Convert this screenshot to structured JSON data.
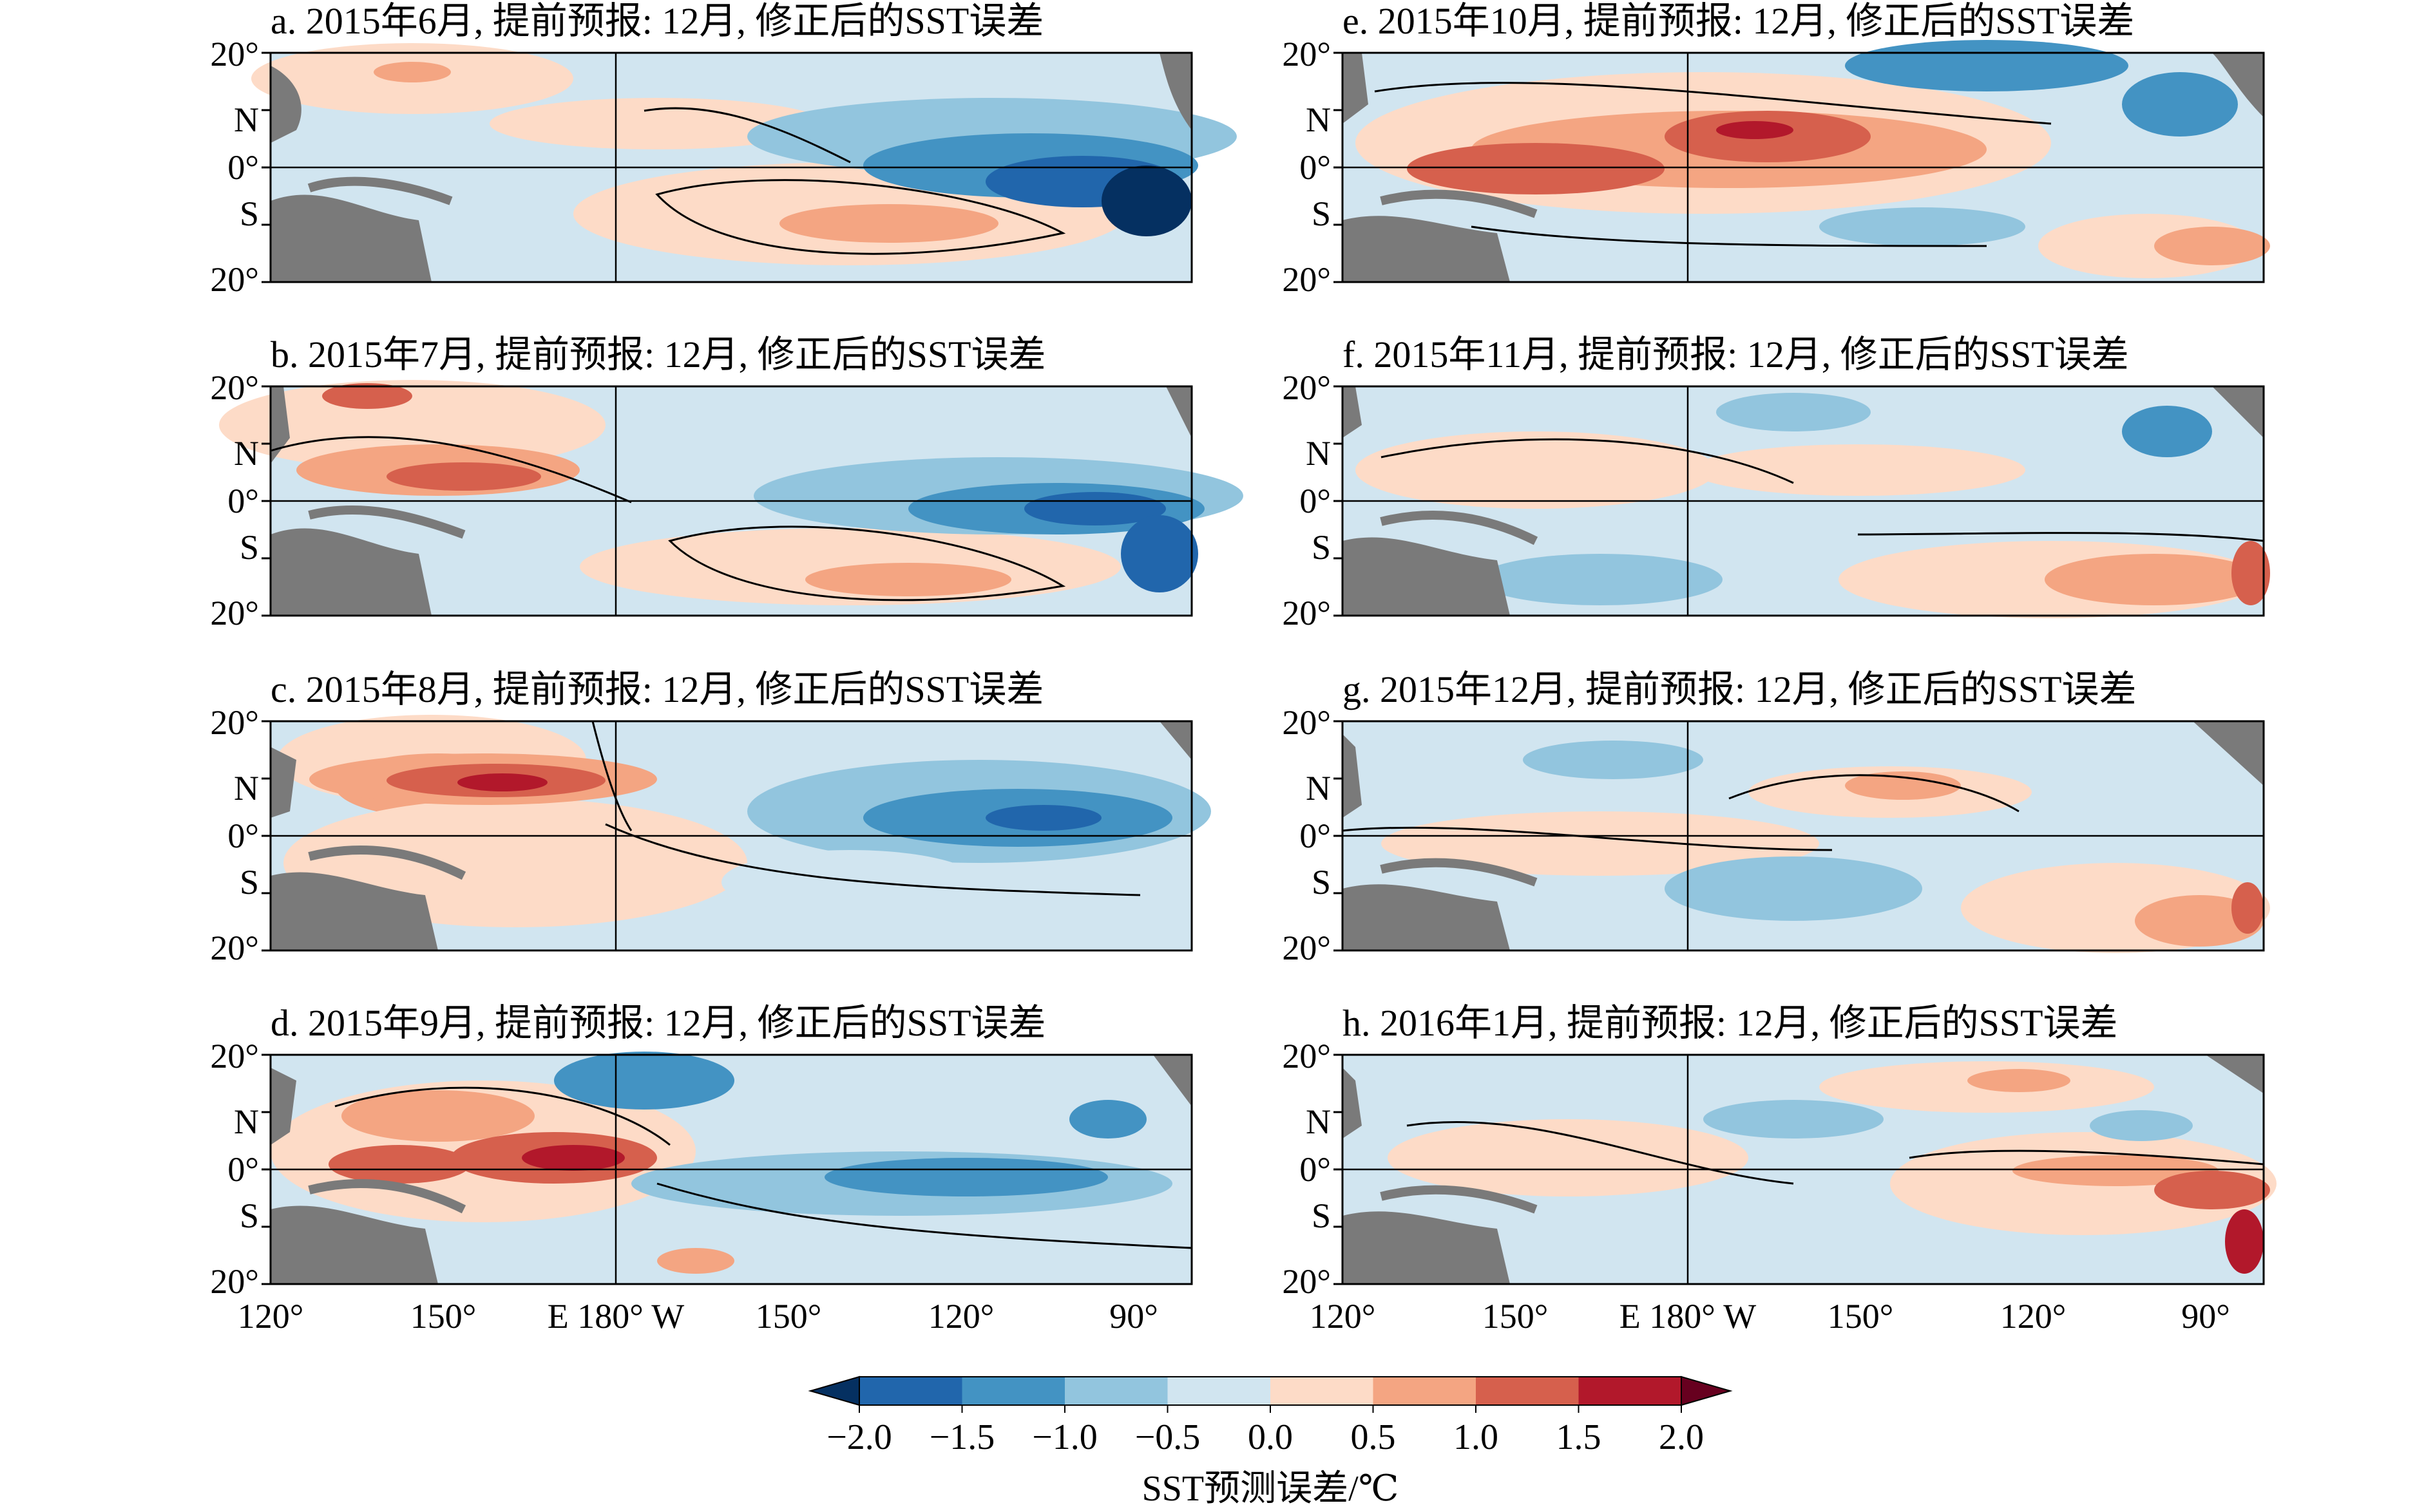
{
  "figure": {
    "panels": [
      {
        "id": "a",
        "title": "a. 2015年6月, 提前预报: 12月, 修正后的SST误差"
      },
      {
        "id": "b",
        "title": "b. 2015年7月, 提前预报: 12月, 修正后的SST误差"
      },
      {
        "id": "c",
        "title": "c. 2015年8月, 提前预报: 12月, 修正后的SST误差"
      },
      {
        "id": "d",
        "title": "d. 2015年9月, 提前预报: 12月, 修正后的SST误差"
      },
      {
        "id": "e",
        "title": "e. 2015年10月, 提前预报: 12月, 修正后的SST误差"
      },
      {
        "id": "f",
        "title": "f. 2015年11月, 提前预报: 12月, 修正后的SST误差"
      },
      {
        "id": "g",
        "title": "g. 2015年12月, 提前预报: 12月, 修正后的SST误差"
      },
      {
        "id": "h",
        "title": "h. 2016年1月, 提前预报: 12月, 修正后的SST误差"
      }
    ],
    "y_ticks": {
      "top": "20°",
      "n": "N",
      "eq": "0°",
      "s": "S",
      "bottom": "20°"
    },
    "x_ticks": [
      "120°",
      "150°",
      "E 180° W",
      "150°",
      "120°",
      "90°"
    ],
    "colorbar": {
      "label": "SST预测误差/℃",
      "tick_labels": [
        "−2.0",
        "−1.5",
        "−1.0",
        "−0.5",
        "0.0",
        "0.5",
        "1.0",
        "1.5",
        "2.0"
      ],
      "colors": [
        "#2166ac",
        "#4393c3",
        "#92c5de",
        "#d1e5f0",
        "#fddbc7",
        "#f4a582",
        "#d6604d",
        "#b2182b"
      ],
      "under_color": "#053061",
      "over_color": "#67001f"
    },
    "land_color": "#7a7a7a"
  }
}
